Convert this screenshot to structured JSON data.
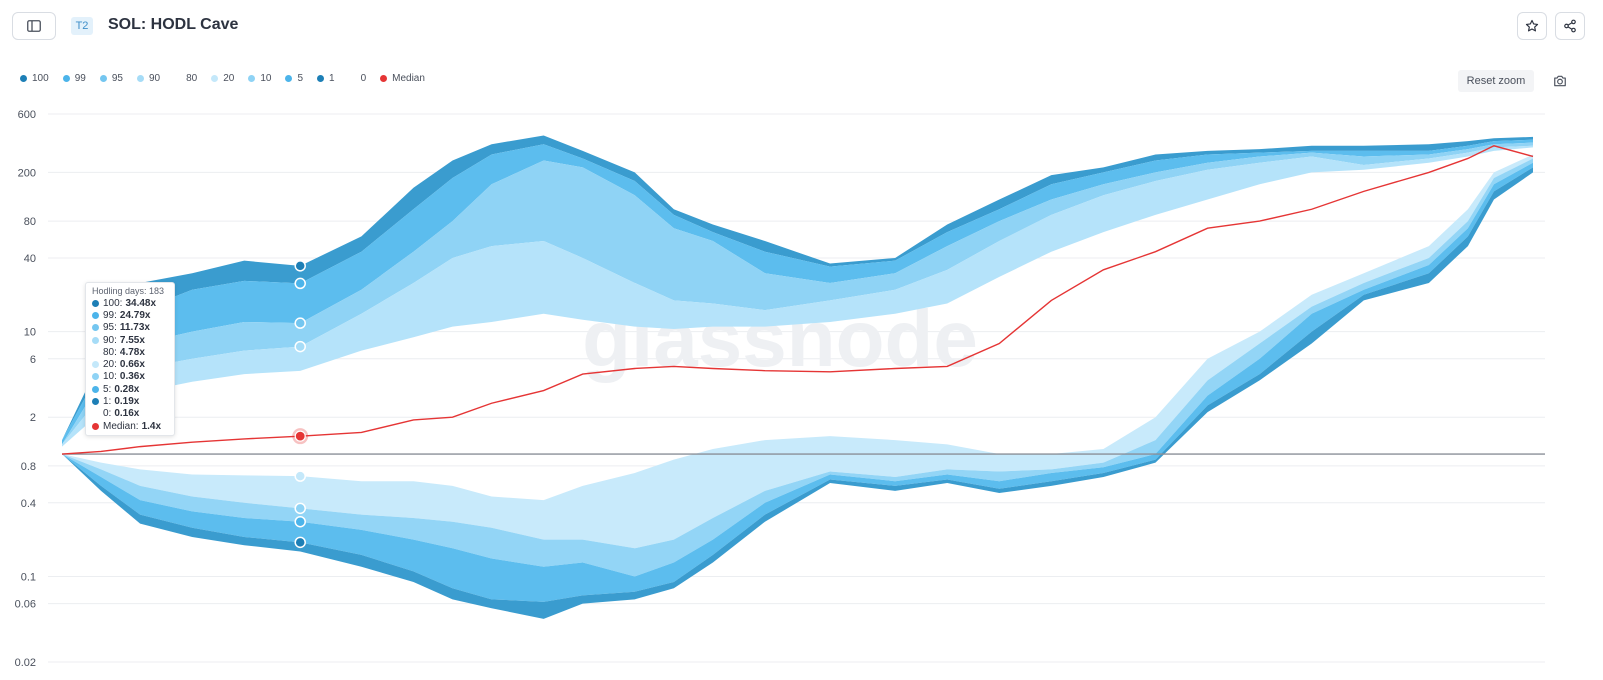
{
  "header": {
    "tier_badge": "T2",
    "title": "SOL: HODL Cave"
  },
  "toolbar": {
    "reset_zoom_label": "Reset zoom"
  },
  "legend": [
    {
      "label": "100",
      "color": "#1d7fb6"
    },
    {
      "label": "99",
      "color": "#4cb4ea"
    },
    {
      "label": "95",
      "color": "#74c6f0"
    },
    {
      "label": "90",
      "color": "#a6dcf7"
    },
    {
      "label": "80",
      "color": ""
    },
    {
      "label": "20",
      "color": "#c4e8fa"
    },
    {
      "label": "10",
      "color": "#8fd3f5"
    },
    {
      "label": "5",
      "color": "#4cb4ea"
    },
    {
      "label": "1",
      "color": "#1d7fb6"
    },
    {
      "label": "0",
      "color": ""
    },
    {
      "label": "Median",
      "color": "#e53535"
    }
  ],
  "tooltip": {
    "title": "Hodling days: 183",
    "rows": [
      {
        "label": "100:",
        "value": "34.48x",
        "color": "#1d7fb6"
      },
      {
        "label": "99:",
        "value": "24.79x",
        "color": "#4cb4ea"
      },
      {
        "label": "95:",
        "value": "11.73x",
        "color": "#74c6f0"
      },
      {
        "label": "90:",
        "value": "7.55x",
        "color": "#a6dcf7"
      },
      {
        "label": "80:",
        "value": "4.78x",
        "color": ""
      },
      {
        "label": "20:",
        "value": "0.66x",
        "color": "#c4e8fa"
      },
      {
        "label": "10:",
        "value": "0.36x",
        "color": "#8fd3f5"
      },
      {
        "label": "5:",
        "value": "0.28x",
        "color": "#4cb4ea"
      },
      {
        "label": "1:",
        "value": "0.19x",
        "color": "#1d7fb6"
      },
      {
        "label": "0:",
        "value": "0.16x",
        "color": ""
      },
      {
        "label": "Median:",
        "value": "1.4x",
        "color": "#e53535"
      }
    ]
  },
  "watermark": "glassnode",
  "chart_data": {
    "type": "area",
    "y_scale": "log",
    "x_range": [
      0,
      1130
    ],
    "x_unit": "hodling days",
    "ylim": [
      0.02,
      600
    ],
    "y_ticks": [
      600,
      200,
      80,
      40,
      10,
      6,
      2,
      0.8,
      0.4,
      0.1,
      0.06,
      0.02
    ],
    "reference_line": 1,
    "hover_x": 183,
    "colors": {
      "p100_99": "#3a9ccf",
      "p99_95": "#5cbdee",
      "p95_90": "#8fd3f5",
      "p90_80": "#b5e3fa",
      "p80_20": "#ffffff",
      "p20_10": "#c8eafb",
      "p10_5": "#93d5f6",
      "p5_1": "#5cbdee",
      "p1_0": "#3a9ccf",
      "median": "#e53535"
    },
    "x": [
      0,
      30,
      60,
      100,
      140,
      183,
      230,
      270,
      300,
      330,
      370,
      400,
      440,
      470,
      500,
      540,
      590,
      640,
      680,
      720,
      760,
      800,
      840,
      880,
      920,
      960,
      1000,
      1050,
      1080,
      1100,
      1130
    ],
    "p100": [
      1.3,
      6,
      25,
      30,
      38,
      34.48,
      60,
      150,
      250,
      340,
      400,
      300,
      200,
      100,
      75,
      55,
      36,
      40,
      75,
      120,
      190,
      220,
      280,
      300,
      310,
      330,
      330,
      340,
      360,
      380,
      390
    ],
    "p99": [
      1.3,
      5,
      15,
      22,
      26,
      24.79,
      45,
      100,
      180,
      280,
      340,
      260,
      170,
      90,
      65,
      45,
      34,
      38,
      65,
      100,
      160,
      200,
      250,
      280,
      290,
      300,
      300,
      300,
      330,
      360,
      370
    ],
    "p95": [
      1.2,
      4,
      8,
      10,
      12,
      11.73,
      22,
      45,
      80,
      160,
      250,
      220,
      130,
      70,
      55,
      30,
      25,
      30,
      50,
      80,
      120,
      160,
      200,
      240,
      270,
      290,
      270,
      280,
      310,
      340,
      350
    ],
    "p90": [
      1.2,
      3,
      5,
      6,
      7,
      7.55,
      14,
      25,
      40,
      50,
      55,
      40,
      25,
      18,
      17,
      15,
      18,
      22,
      32,
      55,
      90,
      130,
      170,
      210,
      240,
      270,
      230,
      260,
      290,
      320,
      330
    ],
    "p80": [
      1.15,
      2.2,
      3.2,
      3.9,
      4.5,
      4.78,
      7,
      9,
      11,
      12,
      14,
      12.5,
      11,
      10.5,
      11,
      11,
      12,
      14,
      17,
      28,
      45,
      65,
      90,
      120,
      160,
      200,
      210,
      240,
      270,
      300,
      320
    ],
    "median": [
      1.0,
      1.05,
      1.15,
      1.25,
      1.33,
      1.4,
      1.5,
      1.9,
      2.0,
      2.6,
      3.3,
      4.5,
      5.0,
      5.2,
      5.0,
      4.8,
      4.7,
      5.0,
      5.2,
      8,
      18,
      32,
      45,
      70,
      80,
      100,
      140,
      200,
      260,
      330,
      270
    ],
    "p20": [
      1.0,
      0.85,
      0.75,
      0.68,
      0.67,
      0.66,
      0.6,
      0.6,
      0.55,
      0.45,
      0.42,
      0.55,
      0.7,
      0.9,
      1.1,
      1.3,
      1.4,
      1.3,
      1.2,
      1.0,
      1.0,
      1.1,
      2,
      6,
      10,
      20,
      30,
      50,
      100,
      200,
      280
    ],
    "p10": [
      1.0,
      0.75,
      0.55,
      0.45,
      0.4,
      0.36,
      0.32,
      0.3,
      0.28,
      0.25,
      0.2,
      0.2,
      0.17,
      0.2,
      0.3,
      0.5,
      0.72,
      0.65,
      0.75,
      0.72,
      0.75,
      0.85,
      1.3,
      4,
      8,
      16,
      25,
      40,
      80,
      180,
      260
    ],
    "p5": [
      1.0,
      0.65,
      0.42,
      0.34,
      0.3,
      0.28,
      0.24,
      0.2,
      0.17,
      0.14,
      0.12,
      0.13,
      0.1,
      0.13,
      0.2,
      0.4,
      0.68,
      0.6,
      0.68,
      0.6,
      0.7,
      0.78,
      1.0,
      3,
      6,
      14,
      22,
      35,
      70,
      160,
      240
    ],
    "p1": [
      1.0,
      0.55,
      0.32,
      0.25,
      0.21,
      0.19,
      0.15,
      0.11,
      0.08,
      0.065,
      0.062,
      0.07,
      0.075,
      0.09,
      0.15,
      0.32,
      0.62,
      0.55,
      0.62,
      0.52,
      0.6,
      0.7,
      0.9,
      2.5,
      4.5,
      10,
      20,
      30,
      60,
      140,
      220
    ],
    "p0": [
      1.0,
      0.5,
      0.27,
      0.21,
      0.18,
      0.16,
      0.12,
      0.09,
      0.065,
      0.055,
      0.045,
      0.06,
      0.065,
      0.08,
      0.13,
      0.28,
      0.58,
      0.5,
      0.58,
      0.48,
      0.55,
      0.65,
      0.85,
      2.2,
      4,
      8,
      18,
      25,
      50,
      120,
      200
    ]
  }
}
